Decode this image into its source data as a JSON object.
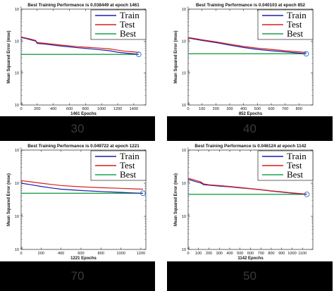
{
  "chart_data": [
    {
      "type": "line",
      "title": "Best Training Performance is 0.038449 at epoch 1461",
      "xlabel": "1461 Epochs",
      "ylabel": "Mean Squared Error (mse)",
      "yscale": "log",
      "ylim": [
        0.001,
        1
      ],
      "xlim": [
        0,
        1550
      ],
      "xticks": [
        0,
        200,
        400,
        600,
        800,
        1000,
        1200,
        1400
      ],
      "legend": [
        "Train",
        "Test",
        "Best"
      ],
      "legend_position": "top-right",
      "colors": {
        "Train": "#1f1fa8",
        "Test": "#d81e1e",
        "Best": "#19a24a"
      },
      "best": {
        "epoch": 1461,
        "value": 0.038449
      },
      "series": [
        {
          "name": "Train",
          "x": [
            0,
            60,
            120,
            180,
            200,
            300,
            500,
            700,
            900,
            1100,
            1200,
            1300,
            1400,
            1461
          ],
          "y": [
            0.13,
            0.12,
            0.11,
            0.1,
            0.085,
            0.08,
            0.07,
            0.062,
            0.056,
            0.05,
            0.045,
            0.042,
            0.04,
            0.038449
          ]
        },
        {
          "name": "Test",
          "x": [
            0,
            60,
            120,
            180,
            200,
            300,
            500,
            700,
            900,
            1100,
            1200,
            1300,
            1400,
            1461
          ],
          "y": [
            0.135,
            0.125,
            0.115,
            0.105,
            0.09,
            0.085,
            0.075,
            0.067,
            0.062,
            0.057,
            0.052,
            0.048,
            0.046,
            0.044
          ]
        },
        {
          "name": "Best",
          "x": [
            0,
            1461
          ],
          "y": [
            0.038449,
            0.038449
          ]
        }
      ],
      "caption": "30"
    },
    {
      "type": "line",
      "title": "Best Training Performance is 0.040103 at epoch 852",
      "xlabel": "852 Epochs",
      "ylabel": "Mean Squared Error (mse)",
      "yscale": "log",
      "ylim": [
        0.001,
        1
      ],
      "xlim": [
        0,
        900
      ],
      "xticks": [
        0,
        100,
        200,
        300,
        400,
        500,
        600,
        700,
        800
      ],
      "legend": [
        "Train",
        "Test",
        "Best"
      ],
      "legend_position": "top-right",
      "colors": {
        "Train": "#1f1fa8",
        "Test": "#d81e1e",
        "Best": "#19a24a"
      },
      "best": {
        "epoch": 852,
        "value": 0.040103
      },
      "series": [
        {
          "name": "Train",
          "x": [
            0,
            50,
            100,
            200,
            300,
            400,
            500,
            600,
            700,
            800,
            852
          ],
          "y": [
            0.125,
            0.115,
            0.105,
            0.09,
            0.075,
            0.063,
            0.055,
            0.05,
            0.046,
            0.042,
            0.040103
          ]
        },
        {
          "name": "Test",
          "x": [
            0,
            50,
            100,
            200,
            300,
            400,
            500,
            600,
            700,
            800,
            852
          ],
          "y": [
            0.13,
            0.12,
            0.11,
            0.095,
            0.08,
            0.068,
            0.06,
            0.055,
            0.05,
            0.046,
            0.044
          ]
        },
        {
          "name": "Best",
          "x": [
            0,
            852
          ],
          "y": [
            0.040103,
            0.040103
          ]
        }
      ],
      "caption": "40"
    },
    {
      "type": "line",
      "title": "Best Training Performance is 0.049722 at epoch 1221",
      "xlabel": "1221 Epochs",
      "ylabel": "Mean Squared Error (mse)",
      "yscale": "log",
      "ylim": [
        0.001,
        1
      ],
      "xlim": [
        0,
        1250
      ],
      "xticks": [
        0,
        200,
        400,
        600,
        800,
        1000,
        1200
      ],
      "legend": [
        "Train",
        "Test",
        "Best"
      ],
      "legend_position": "top-right",
      "colors": {
        "Train": "#1f1fa8",
        "Test": "#d81e1e",
        "Best": "#19a24a"
      },
      "best": {
        "epoch": 1221,
        "value": 0.049722
      },
      "series": [
        {
          "name": "Train",
          "x": [
            0,
            100,
            200,
            300,
            400,
            600,
            800,
            1000,
            1100,
            1221
          ],
          "y": [
            0.1,
            0.09,
            0.08,
            0.072,
            0.066,
            0.06,
            0.056,
            0.053,
            0.051,
            0.049722
          ]
        },
        {
          "name": "Test",
          "x": [
            0,
            100,
            200,
            300,
            400,
            600,
            800,
            1000,
            1100,
            1221
          ],
          "y": [
            0.12,
            0.11,
            0.1,
            0.092,
            0.085,
            0.078,
            0.073,
            0.07,
            0.068,
            0.066
          ]
        },
        {
          "name": "Best",
          "x": [
            0,
            1221
          ],
          "y": [
            0.049722,
            0.049722
          ]
        }
      ],
      "caption": "70"
    },
    {
      "type": "line",
      "title": "Best Training Performance is 0.046124 at epoch 1142",
      "xlabel": "1142 Epochs",
      "ylabel": "Mean Squared Error (mse)",
      "yscale": "log",
      "ylim": [
        0.001,
        1
      ],
      "xlim": [
        0,
        1200
      ],
      "xticks": [
        0,
        100,
        200,
        300,
        400,
        500,
        600,
        700,
        800,
        900,
        1000,
        1100
      ],
      "legend": [
        "Train",
        "Test",
        "Best"
      ],
      "legend_position": "top-right",
      "colors": {
        "Train": "#1f1fa8",
        "Test": "#d81e1e",
        "Best": "#19a24a"
      },
      "best": {
        "epoch": 1142,
        "value": 0.046124
      },
      "series": [
        {
          "name": "Train",
          "x": [
            0,
            40,
            80,
            120,
            150,
            200,
            300,
            400,
            500,
            600,
            700,
            800,
            900,
            1000,
            1100,
            1142
          ],
          "y": [
            0.13,
            0.12,
            0.11,
            0.102,
            0.09,
            0.087,
            0.082,
            0.078,
            0.072,
            0.068,
            0.063,
            0.058,
            0.054,
            0.05,
            0.047,
            0.046124
          ]
        },
        {
          "name": "Test",
          "x": [
            0,
            40,
            80,
            120,
            150,
            200,
            300,
            400,
            500,
            600,
            700,
            800,
            900,
            1000,
            1100,
            1142
          ],
          "y": [
            0.14,
            0.13,
            0.12,
            0.11,
            0.095,
            0.09,
            0.085,
            0.08,
            0.074,
            0.069,
            0.064,
            0.059,
            0.055,
            0.051,
            0.048,
            0.047
          ]
        },
        {
          "name": "Best",
          "x": [
            0,
            1142
          ],
          "y": [
            0.046124,
            0.046124
          ]
        }
      ],
      "caption": "50"
    }
  ]
}
